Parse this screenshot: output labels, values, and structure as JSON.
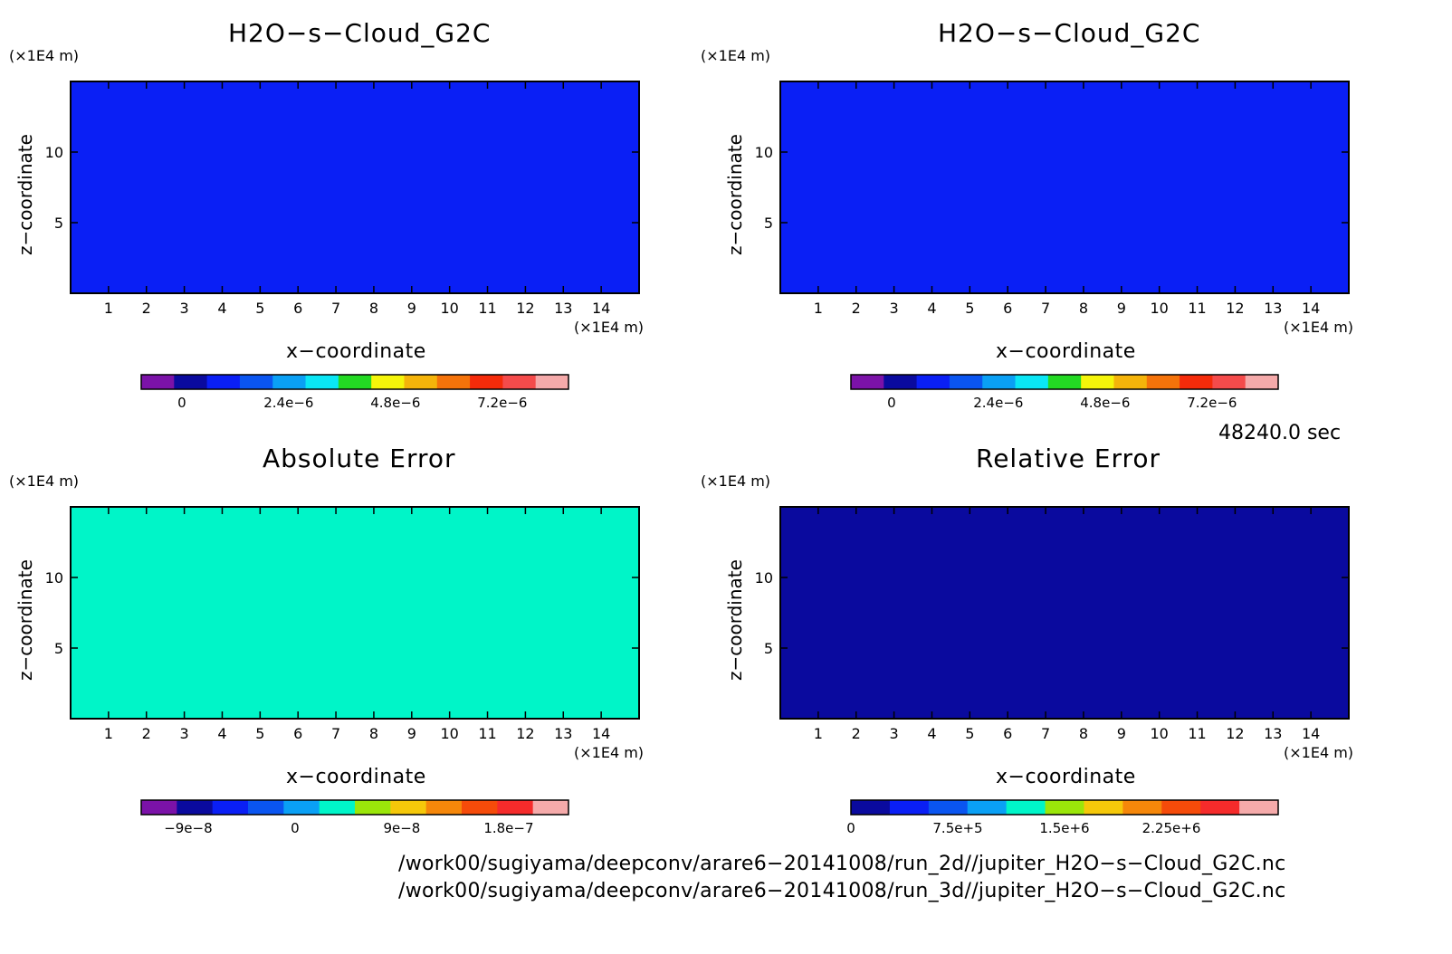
{
  "chart_data": [
    {
      "type": "heatmap",
      "title": "H2O−s−Cloud_G2C",
      "xlabel": "x−coordinate",
      "ylabel": "z−coordinate",
      "x_unit": "(×1E4 m)",
      "y_unit": "(×1E4 m)",
      "xlim": [
        0,
        15
      ],
      "ylim": [
        0,
        15
      ],
      "x_ticks": [
        "1",
        "2",
        "3",
        "4",
        "5",
        "6",
        "7",
        "8",
        "9",
        "10",
        "11",
        "12",
        "13",
        "14"
      ],
      "y_ticks": [
        "5",
        "10"
      ],
      "background_color": "#0a1ff5",
      "colorbar": {
        "colors": [
          "#7b12a8",
          "#0a0a9e",
          "#0a1ff5",
          "#0a55f0",
          "#0aa0f5",
          "#0ae6f5",
          "#23d923",
          "#f5f50a",
          "#f5b40a",
          "#f5730a",
          "#f52b0a",
          "#f54b4b",
          "#f5aaaa"
        ],
        "tick_labels": [
          "0",
          "2.4e−6",
          "4.8e−6",
          "7.2e−6"
        ]
      }
    },
    {
      "type": "heatmap",
      "title": "H2O−s−Cloud_G2C",
      "xlabel": "x−coordinate",
      "ylabel": "z−coordinate",
      "x_unit": "(×1E4 m)",
      "y_unit": "(×1E4 m)",
      "xlim": [
        0,
        15
      ],
      "ylim": [
        0,
        15
      ],
      "x_ticks": [
        "1",
        "2",
        "3",
        "4",
        "5",
        "6",
        "7",
        "8",
        "9",
        "10",
        "11",
        "12",
        "13",
        "14"
      ],
      "y_ticks": [
        "5",
        "10"
      ],
      "background_color": "#0a1ff5",
      "colorbar": {
        "colors": [
          "#7b12a8",
          "#0a0a9e",
          "#0a1ff5",
          "#0a55f0",
          "#0aa0f5",
          "#0ae6f5",
          "#23d923",
          "#f5f50a",
          "#f5b40a",
          "#f5730a",
          "#f52b0a",
          "#f54b4b",
          "#f5aaaa"
        ],
        "tick_labels": [
          "0",
          "2.4e−6",
          "4.8e−6",
          "7.2e−6"
        ]
      }
    },
    {
      "type": "heatmap",
      "title": "Absolute Error",
      "xlabel": "x−coordinate",
      "ylabel": "z−coordinate",
      "x_unit": "(×1E4 m)",
      "y_unit": "(×1E4 m)",
      "xlim": [
        0,
        15
      ],
      "ylim": [
        0,
        15
      ],
      "x_ticks": [
        "1",
        "2",
        "3",
        "4",
        "5",
        "6",
        "7",
        "8",
        "9",
        "10",
        "11",
        "12",
        "13",
        "14"
      ],
      "y_ticks": [
        "5",
        "10"
      ],
      "background_color": "#00f5c8",
      "colorbar": {
        "colors": [
          "#7b12a8",
          "#0a0a9e",
          "#0a1ff5",
          "#0a55f0",
          "#0aa0f5",
          "#00f5c8",
          "#9be60a",
          "#f5c80a",
          "#f5870a",
          "#f54b0a",
          "#f52b2b",
          "#f5aaaa"
        ],
        "tick_labels": [
          "−9e−8",
          "0",
          "9e−8",
          "1.8e−7"
        ]
      }
    },
    {
      "type": "heatmap",
      "title": "Relative Error",
      "xlabel": "x−coordinate",
      "ylabel": "z−coordinate",
      "x_unit": "(×1E4 m)",
      "y_unit": "(×1E4 m)",
      "xlim": [
        0,
        15
      ],
      "ylim": [
        0,
        15
      ],
      "x_ticks": [
        "1",
        "2",
        "3",
        "4",
        "5",
        "6",
        "7",
        "8",
        "9",
        "10",
        "11",
        "12",
        "13",
        "14"
      ],
      "y_ticks": [
        "5",
        "10"
      ],
      "background_color": "#0a0a9e",
      "colorbar": {
        "colors": [
          "#0a0a9e",
          "#0a1ff5",
          "#0a55f0",
          "#0aa0f5",
          "#00f5c8",
          "#9be60a",
          "#f5c80a",
          "#f5870a",
          "#f54b0a",
          "#f52b2b",
          "#f5aaaa"
        ],
        "tick_labels": [
          "0",
          "7.5e+5",
          "1.5e+6",
          "2.25e+6"
        ]
      }
    }
  ],
  "time_label": "48240.0 sec",
  "file_paths": [
    "/work00/sugiyama/deepconv/arare6−20141008/run_2d//jupiter_H2O−s−Cloud_G2C.nc",
    "/work00/sugiyama/deepconv/arare6−20141008/run_3d//jupiter_H2O−s−Cloud_G2C.nc"
  ]
}
